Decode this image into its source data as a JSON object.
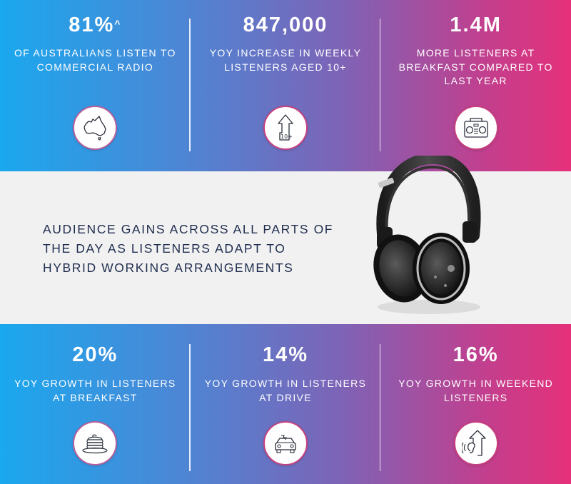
{
  "top_stats": [
    {
      "value": "81%",
      "sup": "^",
      "description": "OF AUSTRALIANS LISTEN TO COMMERCIAL RADIO",
      "icon": "australia-map-icon"
    },
    {
      "value": "847,000",
      "sup": "",
      "description": "YOY INCREASE IN WEEKLY LISTENERS AGED 10+",
      "icon": "arrow-up-10plus-icon"
    },
    {
      "value": "1.4M",
      "sup": "",
      "description": "MORE LISTENERS AT BREAKFAST COMPARED TO LAST YEAR",
      "icon": "radio-icon"
    }
  ],
  "headline": "AUDIENCE GAINS ACROSS ALL PARTS OF THE DAY AS LISTENERS ADAPT TO HYBRID WORKING ARRANGEMENTS",
  "image": {
    "icon": "headphones-icon"
  },
  "bottom_stats": [
    {
      "value": "20%",
      "description": "YOY GROWTH IN LISTENERS AT BREAKFAST",
      "icon": "pancakes-icon"
    },
    {
      "value": "14%",
      "description": "YOY GROWTH IN LISTENERS AT DRIVE",
      "icon": "car-icon"
    },
    {
      "value": "16%",
      "description": "YOY GROWTH IN WEEKEND LISTENERS",
      "icon": "ear-arrow-up-icon"
    }
  ],
  "colors": {
    "gradient_left": "#1aa8ee",
    "gradient_mid": "#7e63b6",
    "gradient_right": "#e6307a",
    "headline_text": "#1f2d4f",
    "middle_background": "#f1f1f1",
    "icon_ring": "#c6417f"
  }
}
